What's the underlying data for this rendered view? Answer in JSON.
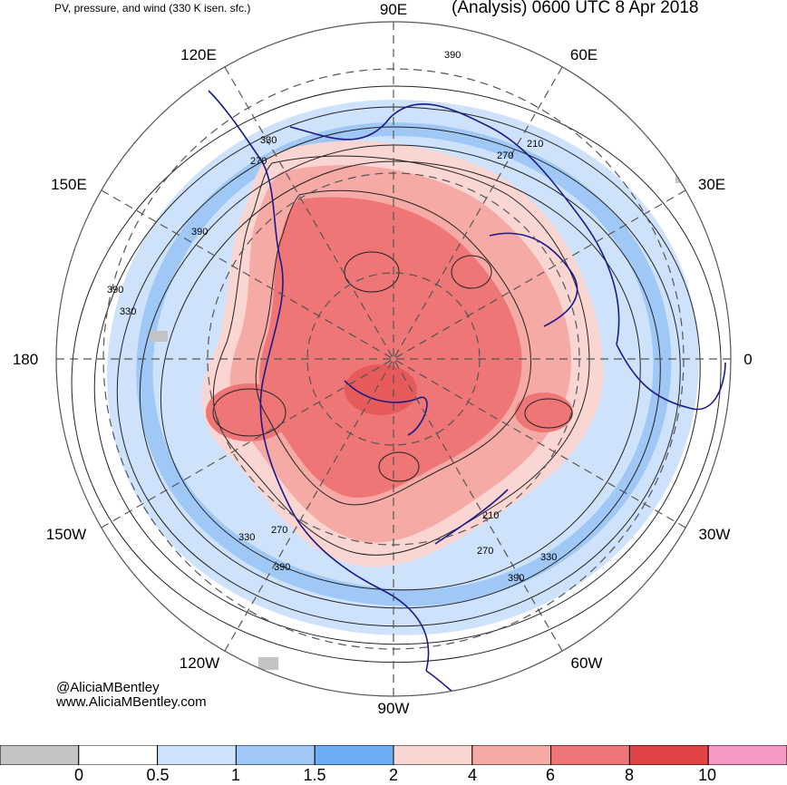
{
  "header": {
    "subtitle": "PV, pressure, and wind (330 K isen. sfc.)",
    "title": "(Analysis) 0600 UTC 8 Apr 2018"
  },
  "longitude_labels": [
    {
      "key": "90E",
      "text": "90E"
    },
    {
      "key": "60E",
      "text": "60E"
    },
    {
      "key": "120E",
      "text": "120E"
    },
    {
      "key": "30E",
      "text": "30E"
    },
    {
      "key": "150E",
      "text": "150E"
    },
    {
      "key": "0",
      "text": "0"
    },
    {
      "key": "180",
      "text": "180"
    },
    {
      "key": "30W",
      "text": "30W"
    },
    {
      "key": "150W",
      "text": "150W"
    },
    {
      "key": "60W",
      "text": "60W"
    },
    {
      "key": "120W",
      "text": "120W"
    },
    {
      "key": "90W",
      "text": "90W"
    }
  ],
  "contour_labels": [
    "390",
    "330",
    "270",
    "210",
    "270",
    "330",
    "390",
    "390",
    "330",
    "270",
    "390",
    "330",
    "270",
    "210",
    "390"
  ],
  "credit": {
    "handle": "@AliciaMBentley",
    "website": "www.AliciaMBentley.com"
  },
  "colorbar": {
    "segments": [
      {
        "color": "#c4c4c4"
      },
      {
        "color": "#ffffff"
      },
      {
        "color": "#cfe2fb"
      },
      {
        "color": "#9fc8f6"
      },
      {
        "color": "#6caef5"
      },
      {
        "color": "#fad6d2"
      },
      {
        "color": "#f6aaa6"
      },
      {
        "color": "#ef7676"
      },
      {
        "color": "#e04444"
      },
      {
        "color": "#f59ac4"
      }
    ],
    "tick_labels": [
      "0",
      "0.5",
      "1",
      "1.5",
      "2",
      "4",
      "6",
      "8",
      "10"
    ]
  },
  "colors": {
    "coastline": "#1a1a8c",
    "contour": "#222222",
    "grid": "#555555",
    "pv_high": "#ef7676",
    "pv_low": "#9fc8f6"
  }
}
